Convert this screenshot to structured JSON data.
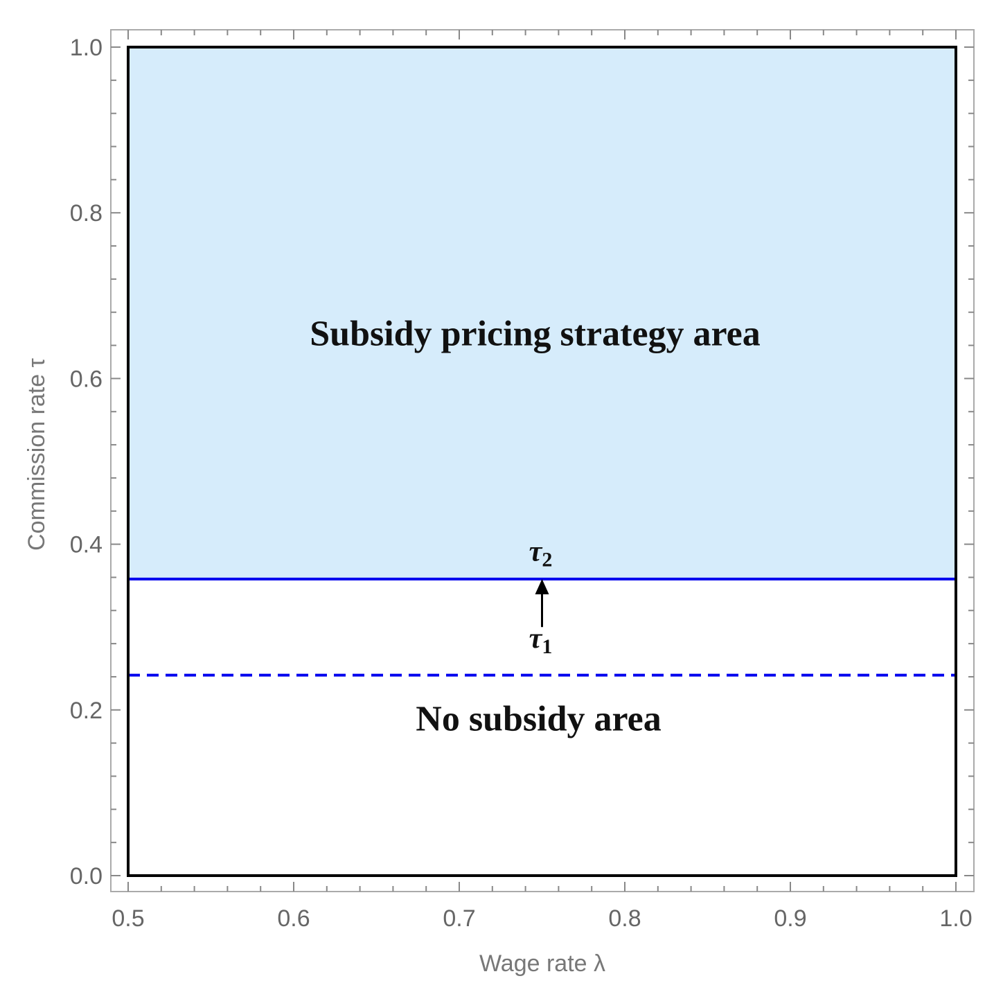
{
  "chart_data": {
    "type": "area",
    "xlabel": "Wage rate λ",
    "ylabel": "Commission rate τ",
    "xlim": [
      0.5,
      1.0
    ],
    "ylim": [
      0.0,
      1.0
    ],
    "x_ticks": [
      "0.5",
      "0.6",
      "0.7",
      "0.8",
      "0.9",
      "1.0"
    ],
    "y_ticks": [
      "0.0",
      "0.2",
      "0.4",
      "0.6",
      "0.8",
      "1.0"
    ],
    "grid": false,
    "series": [
      {
        "name": "τ2",
        "style": "solid",
        "color": "#0000ee",
        "x": [
          0.5,
          1.0
        ],
        "y": [
          0.358,
          0.358
        ]
      },
      {
        "name": "τ1",
        "style": "dashed",
        "color": "#0000ee",
        "x": [
          0.5,
          1.0
        ],
        "y": [
          0.242,
          0.242
        ]
      }
    ],
    "regions": [
      {
        "label": "Subsidy pricing strategy area",
        "y_range": [
          0.358,
          1.0
        ],
        "color": "#d6ecfb"
      },
      {
        "label": "No subsidy area",
        "y_range": [
          0.0,
          0.358
        ],
        "color": "#ffffff"
      }
    ],
    "annotations": {
      "tau2": {
        "symbol": "τ",
        "subscript": "2"
      },
      "tau1": {
        "symbol": "τ",
        "subscript": "1"
      },
      "arrow_from": [
        0.75,
        0.3
      ],
      "arrow_to": [
        0.75,
        0.358
      ]
    }
  }
}
